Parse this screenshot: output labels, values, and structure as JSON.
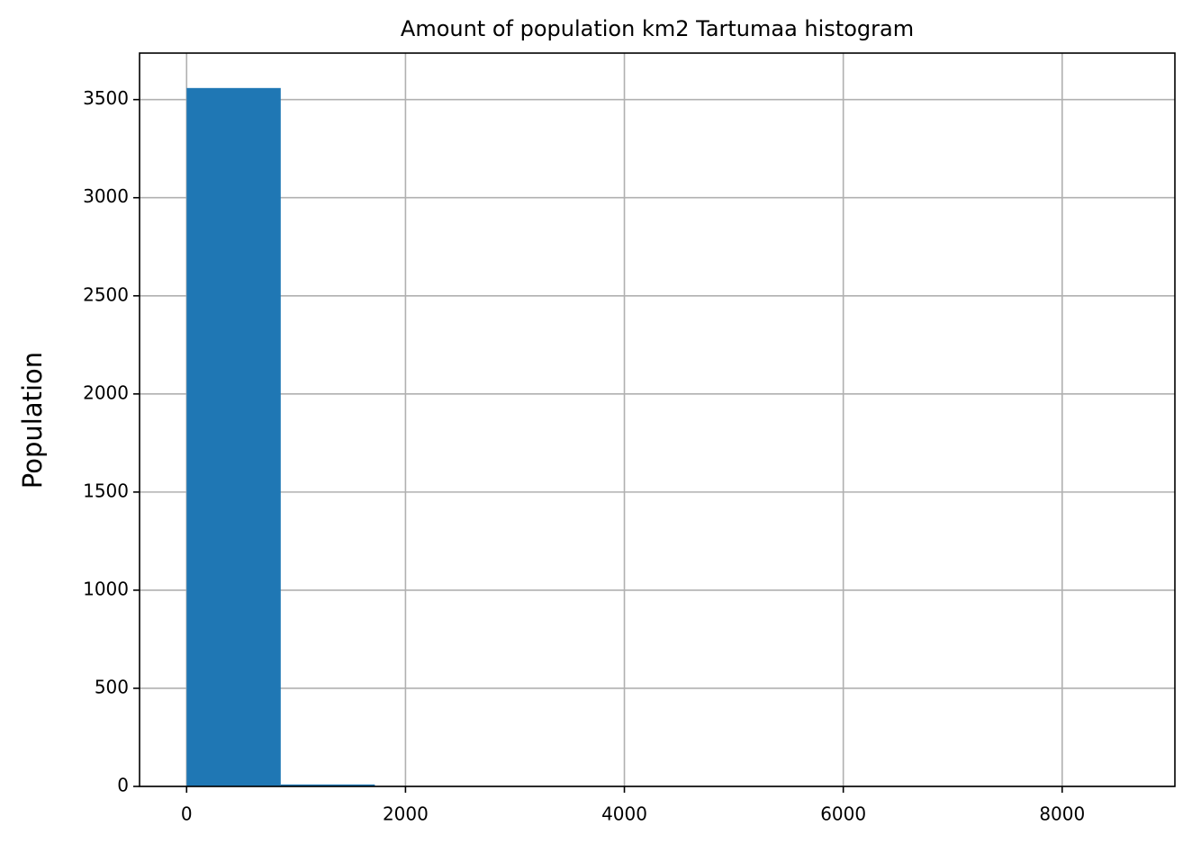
{
  "chart_data": {
    "type": "histogram",
    "title": "Amount of population km2 Tartumaa histogram",
    "ylabel": "Population",
    "bins": [
      0,
      860,
      1720,
      2580,
      3440,
      4300,
      5160,
      6020,
      6880,
      7740,
      8600
    ],
    "values": [
      3559,
      10,
      1,
      0,
      0,
      0,
      0,
      0,
      0,
      1
    ],
    "color": "#1f77b4",
    "xlim": [
      -430,
      9030
    ],
    "xticks": [
      0,
      2000,
      4000,
      6000,
      8000
    ],
    "ylim": [
      0,
      3737
    ],
    "yticks": [
      0,
      500,
      1000,
      1500,
      2000,
      2500,
      3000,
      3500
    ],
    "grid": true
  }
}
